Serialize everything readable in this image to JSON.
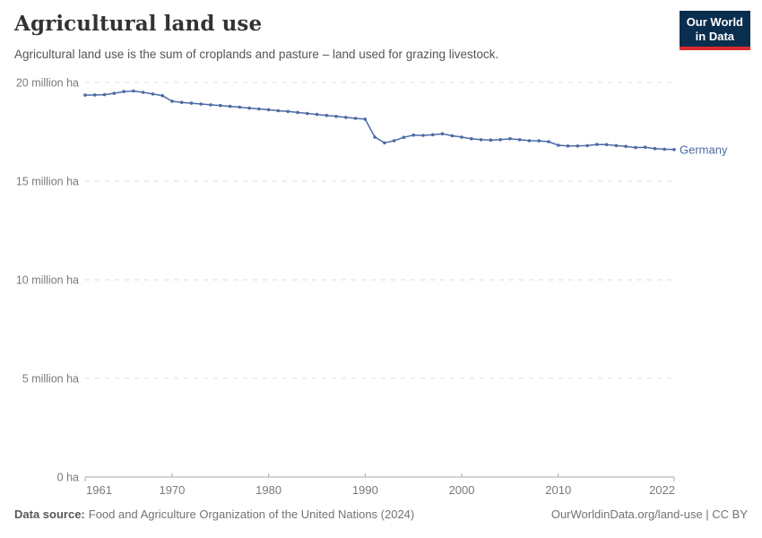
{
  "header": {
    "title": "Agricultural land use",
    "subtitle": "Agricultural land use is the sum of croplands and pasture – land used for grazing livestock.",
    "logo": {
      "line1": "Our World",
      "line2": "in Data"
    }
  },
  "footer": {
    "source_label": "Data source:",
    "source_text": "Food and Agriculture Organization of the United Nations (2024)",
    "link_text": "OurWorldinData.org/land-use | CC BY"
  },
  "chart_data": {
    "type": "line",
    "title": "Agricultural land use",
    "unit": "million ha",
    "xlabel": "",
    "ylabel": "",
    "grid": true,
    "legend_position": "end-of-line-label",
    "xlim": [
      1961,
      2022
    ],
    "ylim": [
      0,
      20
    ],
    "xticks": [
      1961,
      1970,
      1980,
      1990,
      2000,
      2010,
      2022
    ],
    "yticks": [
      {
        "value": 0,
        "label": "0 ha"
      },
      {
        "value": 5,
        "label": "5 million ha"
      },
      {
        "value": 10,
        "label": "10 million ha"
      },
      {
        "value": 15,
        "label": "15 million ha"
      },
      {
        "value": 20,
        "label": "20 million ha"
      }
    ],
    "x": [
      1961,
      1962,
      1963,
      1964,
      1965,
      1966,
      1967,
      1968,
      1969,
      1970,
      1971,
      1972,
      1973,
      1974,
      1975,
      1976,
      1977,
      1978,
      1979,
      1980,
      1981,
      1982,
      1983,
      1984,
      1985,
      1986,
      1987,
      1988,
      1989,
      1990,
      1991,
      1992,
      1993,
      1994,
      1995,
      1996,
      1997,
      1998,
      1999,
      2000,
      2001,
      2002,
      2003,
      2004,
      2005,
      2006,
      2007,
      2008,
      2009,
      2010,
      2011,
      2012,
      2013,
      2014,
      2015,
      2016,
      2017,
      2018,
      2019,
      2020,
      2021,
      2022
    ],
    "series": [
      {
        "name": "Germany",
        "color": "#4C6BA4",
        "values": [
          19.36,
          19.37,
          19.38,
          19.45,
          19.54,
          19.57,
          19.5,
          19.42,
          19.33,
          19.05,
          18.99,
          18.95,
          18.91,
          18.87,
          18.83,
          18.79,
          18.75,
          18.7,
          18.66,
          18.62,
          18.57,
          18.53,
          18.48,
          18.43,
          18.38,
          18.33,
          18.28,
          18.23,
          18.18,
          18.14,
          17.23,
          16.94,
          17.05,
          17.22,
          17.33,
          17.32,
          17.35,
          17.4,
          17.3,
          17.23,
          17.15,
          17.1,
          17.08,
          17.1,
          17.15,
          17.1,
          17.05,
          17.04,
          17.0,
          16.82,
          16.78,
          16.78,
          16.8,
          16.86,
          16.85,
          16.8,
          16.76,
          16.7,
          16.72,
          16.65,
          16.62,
          16.6
        ]
      }
    ]
  },
  "colors": {
    "line": "#4C6BA4",
    "grid": "#dedede",
    "axis": "#a8a8a8",
    "tick_label": "#7a7a7a",
    "title": "#333333",
    "subtitle": "#555555",
    "footer": "#737373",
    "logo_bg": "#0a2e4e",
    "logo_red": "#dc2b2b"
  }
}
